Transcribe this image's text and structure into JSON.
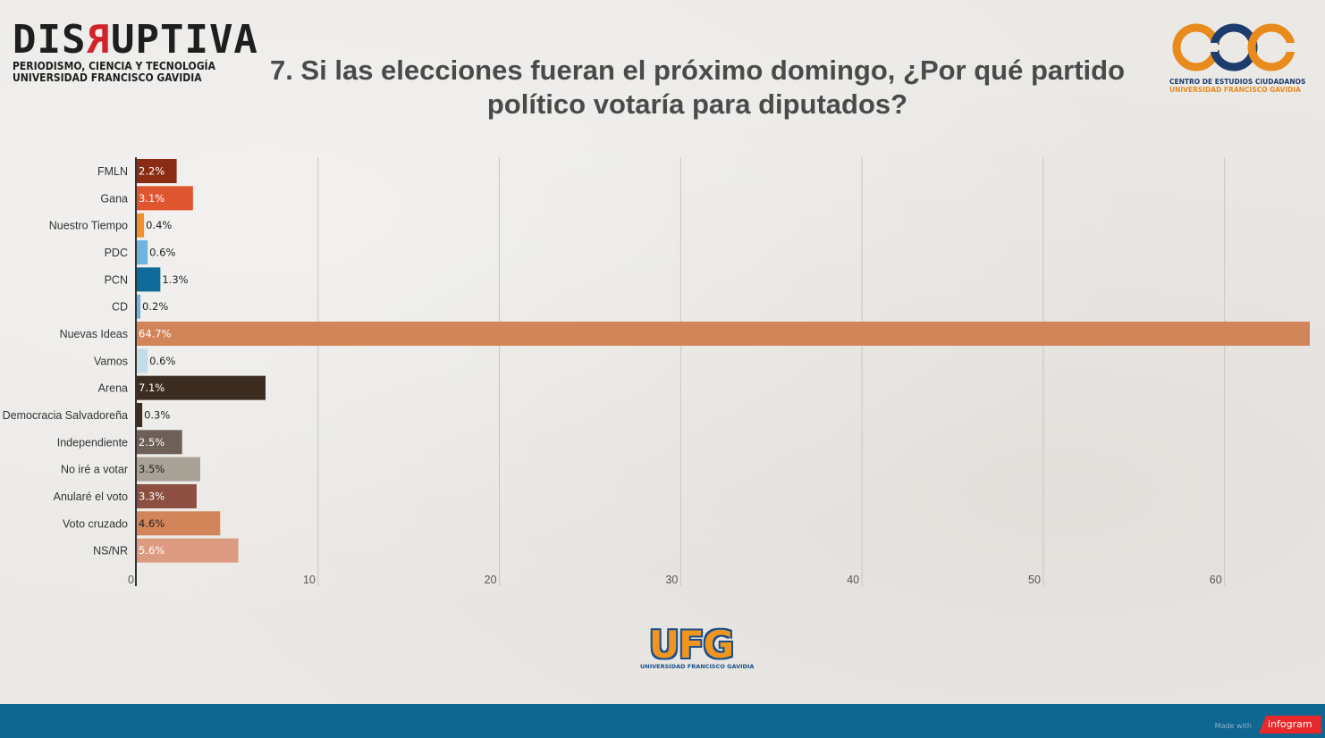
{
  "header": {
    "logo_left": {
      "word_part1": "DIS",
      "word_rev": "R",
      "word_part2": "UPTIVA",
      "line1": "PERIODISMO, CIENCIA Y TECNOLOGÍA",
      "line2": "UNIVERSIDAD FRANCISCO GAVIDIA"
    },
    "title_line1": "7. Si las elecciones fueran el próximo domingo, ¿Por qué partido",
    "title_line2": "político votaría para diputados?",
    "logo_right": {
      "line1": "CENTRO DE ESTUDIOS CIUDADANOS",
      "line2": "UNIVERSIDAD FRANCISCO GAVIDIA"
    }
  },
  "chart_data": {
    "type": "bar",
    "orientation": "horizontal",
    "categories": [
      "FMLN",
      "Gana",
      "Nuestro Tiempo",
      "PDC",
      "PCN",
      "CD",
      "Nuevas Ideas",
      "Vamos",
      "Arena",
      "Democracia Salvadoreña",
      "Independiente",
      "No iré a votar",
      "Anularé el voto",
      "Voto cruzado",
      "NS/NR"
    ],
    "values": [
      2.2,
      3.1,
      0.4,
      0.6,
      1.3,
      0.2,
      64.7,
      0.6,
      7.1,
      0.3,
      2.5,
      3.5,
      3.3,
      4.6,
      5.6
    ],
    "value_labels": [
      "2.2%",
      "3.1%",
      "0.4%",
      "0.6%",
      "1.3%",
      "0.2%",
      "64.7%",
      "0.6%",
      "7.1%",
      "0.3%",
      "2.5%",
      "3.5%",
      "3.3%",
      "4.6%",
      "5.6%"
    ],
    "colors": [
      "#8a2c14",
      "#df5530",
      "#f0902f",
      "#6fb3df",
      "#0f6b9a",
      "#6fb3df",
      "#d3855a",
      "#c3dde8",
      "#3c2d20",
      "#3c2d20",
      "#6e5f57",
      "#a8a196",
      "#8c4f42",
      "#d3855a",
      "#dc9a80"
    ],
    "label_colors": [
      "#ffffff",
      "#ffffff",
      "#222222",
      "#222222",
      "#222222",
      "#222222",
      "#ffffff",
      "#222222",
      "#ffffff",
      "#222222",
      "#ffffff",
      "#222222",
      "#ffffff",
      "#222222",
      "#ffffff"
    ],
    "xlim": [
      0,
      64.7
    ],
    "xticks": [
      0,
      10,
      20,
      30,
      40,
      50,
      60
    ],
    "xtick_labels": [
      "0",
      "10",
      "20",
      "30",
      "40",
      "50",
      "60"
    ],
    "grid": true,
    "title": "",
    "xlabel": "",
    "ylabel": ""
  },
  "logo_bottom": {
    "word": "UFG",
    "sub": "UNIVERSIDAD FRANCISCO GAVIDIA"
  },
  "footer": {
    "made_with": "Made with",
    "brand": "infogram"
  }
}
